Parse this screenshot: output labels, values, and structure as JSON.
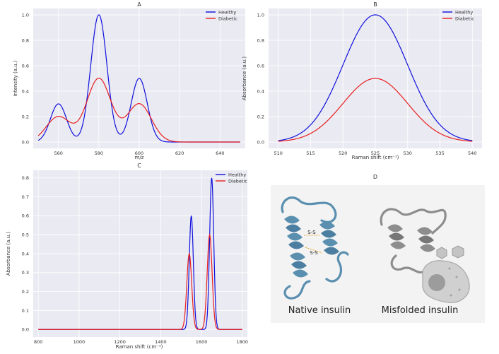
{
  "colors": {
    "healthy": "#1010dd",
    "diabetic": "#e82020",
    "panel_bg": "#eaeaf2",
    "grid": "#ffffff",
    "text": "#333333",
    "native_protein": "#5a8fb0",
    "misfolded_protein": "#8d8d8d",
    "cell": "#d0d0d0",
    "disulfide": "#e5a22a"
  },
  "chart_data": [
    {
      "panel": "A",
      "type": "line",
      "title": "A",
      "xlabel": "m/z",
      "ylabel": "Intensity (a.u.)",
      "xlim": [
        547.5,
        652.5
      ],
      "ylim": [
        -0.05,
        1.05
      ],
      "xticks": [
        560,
        580,
        600,
        620,
        640
      ],
      "yticks": [
        0.0,
        0.2,
        0.4,
        0.6,
        0.8,
        1.0
      ],
      "ytick_labels": [
        "0.0",
        "0.2",
        "0.4",
        "0.6",
        "0.8",
        "1.0"
      ],
      "legend_position": "top-right",
      "series": [
        {
          "name": "Healthy",
          "color_key": "healthy",
          "x_range": [
            550,
            650
          ],
          "peaks": [
            {
              "center": 560,
              "height": 0.3,
              "width": 4
            },
            {
              "center": 580,
              "height": 1.0,
              "width": 4
            },
            {
              "center": 600,
              "height": 0.5,
              "width": 4
            }
          ]
        },
        {
          "name": "Diabetic",
          "color_key": "diabetic",
          "x_range": [
            550,
            650
          ],
          "peaks": [
            {
              "center": 560,
              "height": 0.2,
              "width": 6
            },
            {
              "center": 580,
              "height": 0.5,
              "width": 6
            },
            {
              "center": 600,
              "height": 0.3,
              "width": 6
            }
          ]
        }
      ]
    },
    {
      "panel": "B",
      "type": "line",
      "title": "B",
      "xlabel": "Raman shift (cm⁻¹)",
      "ylabel": "Absorbance (a.u.)",
      "xlim": [
        508.5,
        541.5
      ],
      "ylim": [
        -0.05,
        1.05
      ],
      "xticks": [
        510,
        515,
        520,
        525,
        530,
        535,
        540
      ],
      "yticks": [
        0.0,
        0.2,
        0.4,
        0.6,
        0.8,
        1.0
      ],
      "ytick_labels": [
        "0.0",
        "0.2",
        "0.4",
        "0.6",
        "0.8",
        "1.0"
      ],
      "legend_position": "top-right",
      "series": [
        {
          "name": "Healthy",
          "color_key": "healthy",
          "x_range": [
            510,
            540
          ],
          "peaks": [
            {
              "center": 525,
              "height": 1.0,
              "width": 5
            }
          ]
        },
        {
          "name": "Diabetic",
          "color_key": "diabetic",
          "x_range": [
            510,
            540
          ],
          "peaks": [
            {
              "center": 525,
              "height": 0.5,
              "width": 5
            }
          ]
        }
      ]
    },
    {
      "panel": "C",
      "type": "line",
      "title": "C",
      "xlabel": "Raman shift (cm⁻¹)",
      "ylabel": "Absorbance (a.u.)",
      "xlim": [
        775,
        1825
      ],
      "ylim": [
        -0.04,
        0.84
      ],
      "xticks": [
        800,
        1000,
        1200,
        1400,
        1600,
        1800
      ],
      "yticks": [
        0.0,
        0.1,
        0.2,
        0.3,
        0.4,
        0.5,
        0.6,
        0.7,
        0.8
      ],
      "ytick_labels": [
        "0.0",
        "0.1",
        "0.2",
        "0.3",
        "0.4",
        "0.5",
        "0.6",
        "0.7",
        "0.8"
      ],
      "legend_position": "top-right",
      "series": [
        {
          "name": "Healthy",
          "color_key": "healthy",
          "x_range": [
            800,
            1800
          ],
          "peaks": [
            {
              "center": 1550,
              "height": 0.6,
              "width": 10
            },
            {
              "center": 1650,
              "height": 0.8,
              "width": 10
            }
          ]
        },
        {
          "name": "Diabetic",
          "color_key": "diabetic",
          "x_range": [
            800,
            1800
          ],
          "peaks": [
            {
              "center": 1540,
              "height": 0.4,
              "width": 12
            },
            {
              "center": 1640,
              "height": 0.5,
              "width": 12
            }
          ]
        }
      ]
    }
  ],
  "panel_d": {
    "title": "D",
    "native_label": "Native insulin",
    "misfolded_label": "Misfolded insulin",
    "disulfide_text": "S-S"
  }
}
